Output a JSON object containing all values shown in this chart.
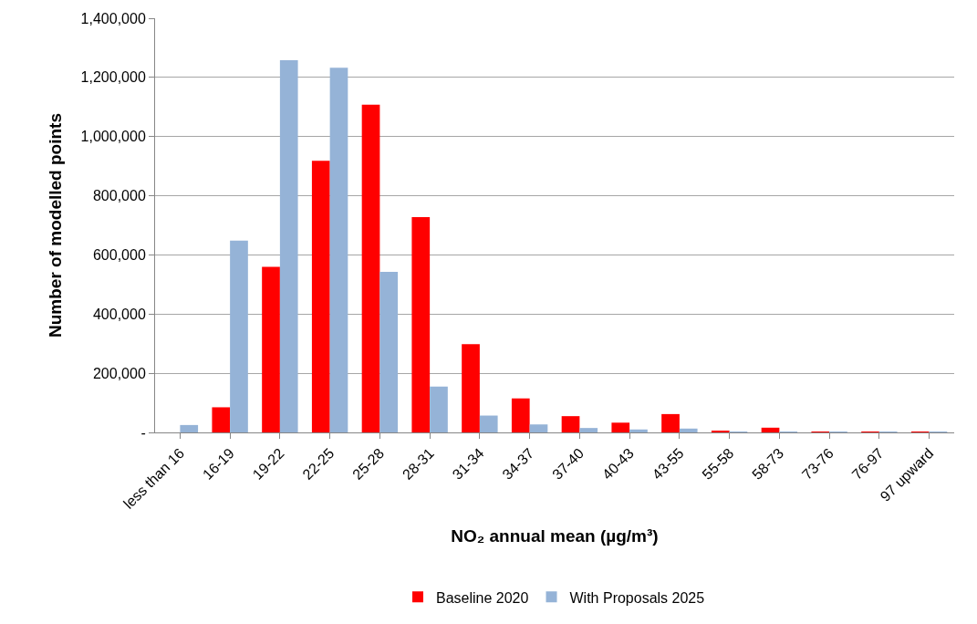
{
  "chart_data": {
    "type": "bar",
    "xlabel": "NO₂ annual mean (µg/m³)",
    "ylabel": "Number of modelled points",
    "categories": [
      "less than 16",
      "16-19",
      "19-22",
      "22-25",
      "25-28",
      "28-31",
      "31-34",
      "34-37",
      "37-40",
      "40-43",
      "43-55",
      "55-58",
      "58-73",
      "73-76",
      "76-97",
      "97 upward"
    ],
    "series": [
      {
        "name": "Baseline 2020",
        "color": "#ff0000",
        "values": [
          0,
          85000,
          560000,
          918000,
          1108000,
          728000,
          298000,
          115000,
          55000,
          33000,
          62000,
          6000,
          16000,
          3000,
          3000,
          3000
        ]
      },
      {
        "name": "With Proposals 2025",
        "color": "#95b3d7",
        "values": [
          25000,
          648000,
          1258000,
          1233000,
          543000,
          155000,
          57000,
          27000,
          15000,
          10000,
          13000,
          3000,
          3000,
          2000,
          2000,
          2000
        ]
      }
    ],
    "ylim": [
      0,
      1400000
    ],
    "yticks": [
      {
        "value": 0,
        "label": "-"
      },
      {
        "value": 200000,
        "label": "200,000"
      },
      {
        "value": 400000,
        "label": "400,000"
      },
      {
        "value": 600000,
        "label": "600,000"
      },
      {
        "value": 800000,
        "label": "800,000"
      },
      {
        "value": 1000000,
        "label": "1,000,000"
      },
      {
        "value": 1200000,
        "label": "1,200,000"
      },
      {
        "value": 1400000,
        "label": "1,400,000"
      }
    ],
    "grid": "y",
    "legend": "bottom"
  }
}
